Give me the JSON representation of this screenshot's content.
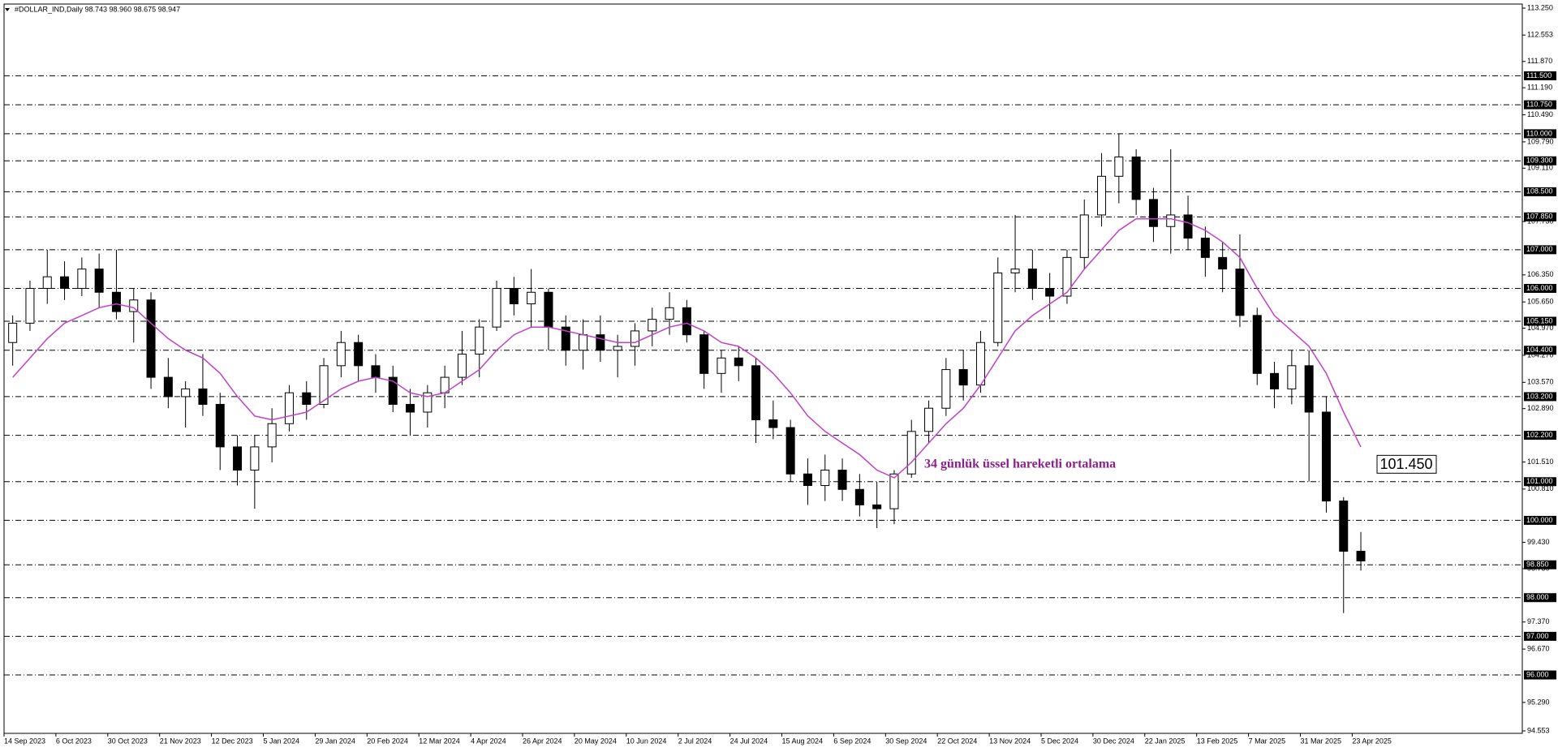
{
  "chart_data": {
    "type": "candlestick",
    "header": "#DOLLAR_IND,Daily  98.743 98.960 98.675 98.947",
    "categories": [
      "14 Sep 2023",
      null,
      null,
      "6 Oct 2023",
      null,
      null,
      "30 Oct 2023",
      null,
      null,
      "21 Nov 2023",
      null,
      null,
      "12 Dec 2023",
      null,
      null,
      "5 Jan 2024",
      null,
      null,
      "29 Jan 2024",
      null,
      null,
      "20 Feb 2024",
      null,
      null,
      "12 Mar 2024",
      null,
      null,
      "4 Apr 2024",
      null,
      null,
      "26 Apr 2024",
      null,
      null,
      "20 May 2024",
      null,
      null,
      "10 Jun 2024",
      null,
      null,
      "2 Jul 2024",
      null,
      null,
      "24 Jul 2024",
      null,
      null,
      "15 Aug 2024",
      null,
      null,
      "6 Sep 2024",
      null,
      null,
      "30 Sep 2024",
      null,
      null,
      "22 Oct 2024",
      null,
      null,
      "13 Nov 2024",
      null,
      null,
      "5 Dec 2024",
      null,
      null,
      "30 Dec 2024",
      null,
      null,
      "22 Jan 2025",
      null,
      null,
      "13 Feb 2025",
      null,
      null,
      "7 Mar 2025",
      null,
      null,
      "31 Mar 2025",
      null,
      null,
      "23 Apr 2025"
    ],
    "open": [
      104.6,
      105.1,
      106.0,
      106.3,
      106.0,
      106.5,
      105.9,
      105.4,
      105.7,
      103.7,
      103.2,
      103.4,
      103.0,
      101.9,
      101.3,
      101.9,
      102.5,
      103.3,
      103.0,
      104.0,
      104.6,
      104.0,
      103.7,
      103.0,
      102.8,
      103.3,
      103.7,
      104.3,
      105.0,
      106.0,
      105.6,
      105.9,
      105.0,
      104.4,
      104.8,
      104.4,
      104.5,
      104.9,
      105.2,
      105.5,
      104.8,
      103.8,
      104.2,
      104.0,
      102.6,
      102.4,
      101.2,
      100.9,
      101.3,
      100.8,
      100.4,
      100.3,
      101.2,
      102.3,
      102.9,
      103.9,
      103.5,
      104.6,
      106.4,
      106.5,
      106.0,
      105.8,
      106.8,
      107.9,
      108.9,
      109.4,
      108.3,
      107.6,
      107.9,
      107.3,
      106.8,
      106.5,
      105.3,
      103.8,
      103.4,
      104.0,
      102.8,
      100.5,
      99.2
    ],
    "high": [
      105.3,
      106.2,
      107.0,
      106.7,
      106.8,
      106.9,
      107.0,
      106.0,
      105.9,
      104.2,
      103.6,
      104.3,
      103.3,
      102.2,
      102.2,
      102.9,
      103.5,
      103.6,
      104.2,
      104.9,
      104.8,
      104.3,
      104.0,
      103.4,
      103.5,
      104.0,
      104.9,
      105.2,
      106.2,
      106.3,
      106.5,
      106.0,
      105.3,
      105.2,
      105.3,
      104.8,
      105.1,
      105.5,
      105.9,
      105.7,
      104.9,
      104.4,
      104.5,
      104.2,
      103.1,
      102.6,
      101.6,
      101.7,
      101.6,
      101.2,
      101.0,
      101.3,
      102.6,
      103.1,
      104.2,
      104.4,
      104.9,
      106.8,
      107.9,
      107.0,
      106.4,
      107.0,
      108.3,
      109.5,
      110.0,
      109.6,
      108.6,
      109.6,
      108.4,
      107.6,
      107.2,
      107.4,
      105.5,
      104.1,
      104.4,
      104.4,
      103.2,
      100.6,
      99.7
    ],
    "low": [
      104.0,
      104.9,
      105.6,
      105.7,
      105.8,
      105.5,
      105.2,
      104.6,
      103.4,
      102.9,
      102.4,
      102.7,
      101.3,
      100.9,
      100.3,
      101.5,
      102.3,
      102.6,
      102.9,
      103.7,
      103.6,
      103.3,
      102.8,
      102.2,
      102.4,
      102.9,
      103.5,
      103.7,
      104.9,
      105.3,
      105.0,
      104.4,
      104.0,
      103.9,
      104.1,
      103.7,
      104.0,
      104.5,
      104.8,
      104.6,
      103.4,
      103.3,
      103.6,
      102.0,
      102.1,
      101.0,
      100.4,
      100.5,
      100.5,
      100.1,
      99.8,
      99.9,
      101.1,
      102.0,
      102.7,
      103.1,
      103.3,
      104.5,
      105.9,
      105.7,
      105.2,
      105.6,
      106.5,
      107.6,
      108.2,
      107.9,
      107.2,
      106.9,
      107.0,
      106.3,
      105.9,
      105.0,
      103.5,
      102.9,
      103.0,
      101.0,
      100.2,
      97.6,
      98.7
    ],
    "close": [
      105.1,
      106.0,
      106.3,
      106.0,
      106.5,
      105.9,
      105.4,
      105.7,
      103.7,
      103.2,
      103.4,
      103.0,
      101.9,
      101.3,
      101.9,
      102.5,
      103.3,
      103.0,
      104.0,
      104.6,
      104.0,
      103.7,
      103.0,
      102.8,
      103.3,
      103.7,
      104.3,
      105.0,
      106.0,
      105.6,
      105.9,
      105.0,
      104.4,
      104.8,
      104.4,
      104.5,
      104.9,
      105.2,
      105.5,
      104.8,
      103.8,
      104.2,
      104.0,
      102.6,
      102.4,
      101.2,
      100.9,
      101.3,
      100.8,
      100.4,
      100.3,
      101.2,
      102.3,
      102.9,
      103.9,
      103.5,
      104.6,
      106.4,
      106.5,
      106.0,
      105.8,
      106.8,
      107.9,
      108.9,
      109.4,
      108.3,
      107.6,
      107.9,
      107.3,
      106.8,
      106.5,
      105.3,
      103.8,
      103.4,
      104.0,
      102.8,
      100.5,
      99.2,
      98.95
    ],
    "up_color": "#ffffff",
    "down_color": "#000000",
    "ema": {
      "color": "#c040c8",
      "values": [
        103.7,
        104.2,
        104.7,
        105.1,
        105.3,
        105.5,
        105.6,
        105.5,
        105.1,
        104.7,
        104.4,
        104.2,
        103.8,
        103.2,
        102.7,
        102.6,
        102.7,
        102.8,
        103.1,
        103.4,
        103.6,
        103.7,
        103.6,
        103.3,
        103.2,
        103.3,
        103.6,
        103.9,
        104.4,
        104.8,
        105.0,
        105.0,
        104.9,
        104.8,
        104.7,
        104.6,
        104.6,
        104.8,
        105.0,
        105.1,
        104.9,
        104.6,
        104.5,
        104.2,
        103.8,
        103.3,
        102.7,
        102.3,
        102.0,
        101.7,
        101.3,
        101.1,
        101.5,
        102.0,
        102.5,
        102.9,
        103.5,
        104.2,
        104.9,
        105.3,
        105.6,
        105.9,
        106.5,
        107.0,
        107.5,
        107.8,
        107.8,
        107.8,
        107.7,
        107.5,
        107.2,
        106.8,
        106.0,
        105.3,
        104.9,
        104.5,
        103.8,
        102.8,
        101.9
      ]
    },
    "annotations": [
      {
        "text": "34 günlük üssel hareketli ortalama",
        "color": "#8b1f8b"
      },
      {
        "value": 101.45,
        "label": "101.450"
      }
    ],
    "ylim": [
      94.553,
      113.25
    ],
    "yticks": [
      {
        "value": 113.25,
        "label": "113.250"
      },
      {
        "value": 112.553,
        "label": "112.553"
      },
      {
        "value": 111.87,
        "label": "111.870"
      },
      {
        "value": 111.19,
        "label": "111.190"
      },
      {
        "value": 110.49,
        "label": "110.490"
      },
      {
        "value": 109.79,
        "label": "109.790"
      },
      {
        "value": 109.11,
        "label": "109.110"
      },
      {
        "value": 107.73,
        "label": "107.730"
      },
      {
        "value": 106.35,
        "label": "106.350"
      },
      {
        "value": 105.65,
        "label": "105.650"
      },
      {
        "value": 104.97,
        "label": "104.970"
      },
      {
        "value": 104.27,
        "label": "104.270"
      },
      {
        "value": 103.57,
        "label": "103.570"
      },
      {
        "value": 102.89,
        "label": "102.890"
      },
      {
        "value": 101.51,
        "label": "101.510"
      },
      {
        "value": 100.81,
        "label": "100.810"
      },
      {
        "value": 99.43,
        "label": "99.430"
      },
      {
        "value": 98.75,
        "label": "98.750"
      },
      {
        "value": 97.37,
        "label": "97.370"
      },
      {
        "value": 96.67,
        "label": "96.670"
      },
      {
        "value": 95.29,
        "label": "95.290"
      },
      {
        "value": 94.553,
        "label": "94.553"
      }
    ],
    "levels": [
      {
        "value": 111.5,
        "label": "111.500"
      },
      {
        "value": 110.75,
        "label": "110.750"
      },
      {
        "value": 110,
        "label": "110.000"
      },
      {
        "value": 109.3,
        "label": "109.300"
      },
      {
        "value": 108.5,
        "label": "108.500"
      },
      {
        "value": 107.85,
        "label": "107.850"
      },
      {
        "value": 107,
        "label": "107.000"
      },
      {
        "value": 106,
        "label": "106.000"
      },
      {
        "value": 105.15,
        "label": "105.150"
      },
      {
        "value": 104.4,
        "label": "104.400"
      },
      {
        "value": 103.2,
        "label": "103.200"
      },
      {
        "value": 102.2,
        "label": "102.200"
      },
      {
        "value": 101,
        "label": "101.000"
      },
      {
        "value": 100,
        "label": "100.000"
      },
      {
        "value": 98.85,
        "label": "98.850"
      },
      {
        "value": 98,
        "label": "98.000"
      },
      {
        "value": 97,
        "label": "97.000"
      },
      {
        "value": 96,
        "label": "96.000"
      }
    ]
  }
}
